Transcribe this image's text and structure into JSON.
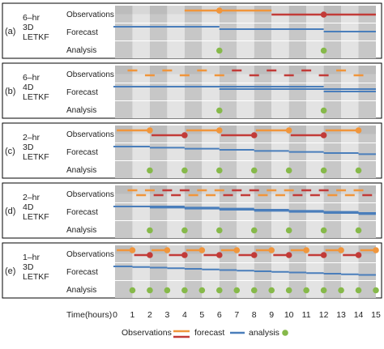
{
  "panels": [
    {
      "tag": "(a)",
      "scheme": [
        "6–hr",
        "3D",
        "LETKF"
      ],
      "obs_interval": 6,
      "window": 0,
      "forecast_len": 6,
      "analysis_times": [
        6,
        12
      ],
      "obs_colors": [
        "orange",
        "red"
      ]
    },
    {
      "tag": "(b)",
      "scheme": [
        "6–hr",
        "4D",
        "LETKF"
      ],
      "obs_interval": 6,
      "window": 6,
      "forecast_len": 6,
      "analysis_times": [
        6,
        12
      ],
      "obs_colors": [
        "orange",
        "red"
      ]
    },
    {
      "tag": "(c)",
      "scheme": [
        "2–hr",
        "3D",
        "LETKF"
      ],
      "obs_interval": 2,
      "window": 0,
      "forecast_len": 2,
      "analysis_times": [
        2,
        4,
        6,
        8,
        10,
        12,
        14
      ],
      "obs_colors": [
        "orange",
        "red"
      ]
    },
    {
      "tag": "(d)",
      "scheme": [
        "2–hr",
        "4D",
        "LETKF"
      ],
      "obs_interval": 2,
      "window": 2,
      "forecast_len": 2,
      "analysis_times": [
        2,
        4,
        6,
        8,
        10,
        12,
        14
      ],
      "obs_colors": [
        "orange",
        "red"
      ]
    },
    {
      "tag": "(e)",
      "scheme": [
        "1–hr",
        "3D",
        "LETKF"
      ],
      "obs_interval": 1,
      "window": 0,
      "forecast_len": 1,
      "analysis_times": [
        1,
        2,
        3,
        4,
        5,
        6,
        7,
        8,
        9,
        10,
        11,
        12,
        13,
        14,
        15
      ],
      "obs_colors": [
        "orange",
        "red"
      ]
    }
  ],
  "row_labels": [
    "Observations",
    "Forecast",
    "Analysis"
  ],
  "axis": {
    "label": "Time(hours)",
    "ticks": [
      0,
      1,
      2,
      3,
      4,
      5,
      6,
      7,
      8,
      9,
      10,
      11,
      12,
      13,
      14,
      15
    ],
    "min": 0,
    "max": 15
  },
  "legend": {
    "observations": "Observations",
    "forecast": "forecast",
    "analysis": "analysis"
  },
  "colors": {
    "orange": "#F0953B",
    "red": "#C23B38",
    "forecast": "#4A7EBB",
    "analysis": "#86B94A",
    "band_dark": "#C7C7C7",
    "band_light": "#E3E3E3",
    "panel_border": "#000000"
  }
}
